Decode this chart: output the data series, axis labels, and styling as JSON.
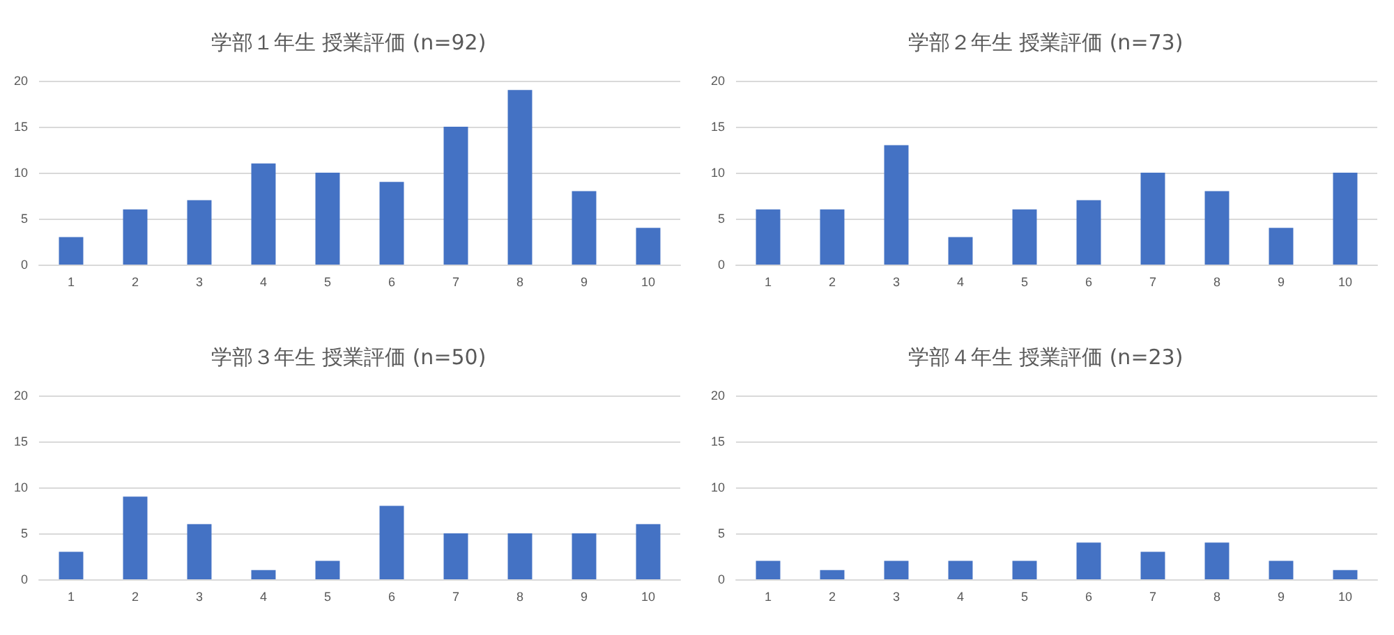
{
  "chart_data": [
    {
      "type": "bar",
      "title": "学部１年生 授業評価 (n=92)",
      "categories": [
        "1",
        "2",
        "3",
        "4",
        "5",
        "6",
        "7",
        "8",
        "9",
        "10"
      ],
      "values": [
        3,
        6,
        7,
        11,
        10,
        9,
        15,
        19,
        8,
        4
      ],
      "color": "#4472c4",
      "ylim": [
        0,
        20
      ],
      "yticks": [
        0,
        5,
        10,
        15,
        20
      ],
      "grid": "y"
    },
    {
      "type": "bar",
      "title": "学部２年生 授業評価 (n=73)",
      "categories": [
        "1",
        "2",
        "3",
        "4",
        "5",
        "6",
        "7",
        "8",
        "9",
        "10"
      ],
      "values": [
        6,
        6,
        13,
        3,
        6,
        7,
        10,
        8,
        4,
        10
      ],
      "color": "#4472c4",
      "ylim": [
        0,
        20
      ],
      "yticks": [
        0,
        5,
        10,
        15,
        20
      ],
      "grid": "y"
    },
    {
      "type": "bar",
      "title": "学部３年生 授業評価 (n=50)",
      "categories": [
        "1",
        "2",
        "3",
        "4",
        "5",
        "6",
        "7",
        "8",
        "9",
        "10"
      ],
      "values": [
        3,
        9,
        6,
        1,
        2,
        8,
        5,
        5,
        5,
        6
      ],
      "color": "#4472c4",
      "ylim": [
        0,
        20
      ],
      "yticks": [
        0,
        5,
        10,
        15,
        20
      ],
      "grid": "y"
    },
    {
      "type": "bar",
      "title": "学部４年生 授業評価 (n=23)",
      "categories": [
        "1",
        "2",
        "3",
        "4",
        "5",
        "6",
        "7",
        "8",
        "9",
        "10"
      ],
      "values": [
        2,
        1,
        2,
        2,
        2,
        4,
        3,
        4,
        2,
        1
      ],
      "color": "#4472c4",
      "ylim": [
        0,
        20
      ],
      "yticks": [
        0,
        5,
        10,
        15,
        20
      ],
      "grid": "y"
    }
  ]
}
